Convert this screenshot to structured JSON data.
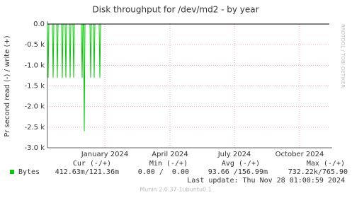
{
  "chart_data": {
    "type": "line",
    "title": "Disk throughput for /dev/md2 - by year",
    "y_label": "Pr second read (-) / write (+)",
    "x": [
      0,
      1,
      2,
      7,
      8,
      9,
      13,
      14,
      15,
      20,
      21,
      22,
      25,
      26,
      27,
      31,
      32,
      33,
      36,
      37,
      38,
      48,
      49,
      50,
      51,
      52,
      53,
      60,
      61,
      62,
      65,
      66,
      67,
      73,
      74,
      75
    ],
    "series": [
      {
        "name": "Bytes",
        "color": "#00cc00",
        "values": [
          0,
          -1300,
          0,
          0,
          -1300,
          0,
          0,
          -1300,
          0,
          0,
          -1300,
          0,
          0,
          -1300,
          0,
          0,
          -1300,
          0,
          0,
          -1300,
          0,
          0,
          -1300,
          0,
          0,
          -2600,
          0,
          0,
          -1300,
          0,
          0,
          -1300,
          0,
          0,
          -1300,
          0
        ]
      }
    ],
    "xlim": [
      0,
      398
    ],
    "xticks": [
      {
        "value": 81,
        "label": "January 2024"
      },
      {
        "value": 173,
        "label": "April 2024"
      },
      {
        "value": 264,
        "label": "July 2024"
      },
      {
        "value": 356,
        "label": "October 2024"
      }
    ],
    "ylim": [
      -3000,
      0
    ],
    "yticks": [
      {
        "value": 0,
        "label": "0.0"
      },
      {
        "value": -500,
        "label": "-0.5 k"
      },
      {
        "value": -1000,
        "label": "-1.0 k"
      },
      {
        "value": -1500,
        "label": "-1.5 k"
      },
      {
        "value": -2000,
        "label": "-2.0 k"
      },
      {
        "value": -2500,
        "label": "-2.5 k"
      },
      {
        "value": -3000,
        "label": "-3.0 k"
      }
    ],
    "grid": true,
    "stats": {
      "headers": [
        "Cur (-/+)",
        "Min (-/+)",
        "Avg (-/+)",
        "Max (-/+)"
      ],
      "rows": [
        [
          "412.63m/121.36m",
          "0.00 /  0.00",
          "93.66 /156.99m",
          "732.22k/765.90"
        ]
      ]
    },
    "last_update": "Last update: Thu Nov 28 01:00:59 2024",
    "footer": "Munin 2.0.37-1ubuntu0.1",
    "side_text": "RRDTOOL / TOBI OETIKER"
  }
}
